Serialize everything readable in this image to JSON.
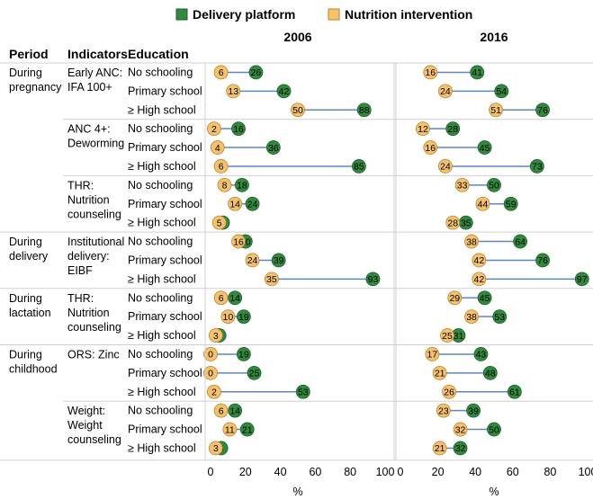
{
  "colors": {
    "delivery": "#2e8b3e",
    "delivery_stroke": "#1f5f2a",
    "nutrition": "#f5c26b",
    "nutrition_stroke": "#b8862e",
    "connector": "#5b87c5",
    "grid": "#d0d0d0"
  },
  "chart_data": {
    "type": "dumbbell",
    "legend": [
      "Delivery platform",
      "Nutrition intervention"
    ],
    "legend_position": "top",
    "column_headers": [
      "Period",
      "Indicators",
      "Education"
    ],
    "panels": [
      "2006",
      "2016"
    ],
    "xlabel": "%",
    "xlim": [
      0,
      100
    ],
    "xticks": [
      "0",
      "20",
      "40",
      "60",
      "80",
      "100"
    ],
    "groups": [
      {
        "period": "During pregnancy",
        "indicators": [
          {
            "name": "Early ANC: IFA 100+",
            "rows": [
              {
                "education": "No schooling",
                "n2006": 6,
                "d2006": 26,
                "n2016": 16,
                "d2016": 41
              },
              {
                "education": "Primary school",
                "n2006": 13,
                "d2006": 42,
                "n2016": 24,
                "d2016": 54
              },
              {
                "education": "≥ High school",
                "n2006": 50,
                "d2006": 88,
                "n2016": 51,
                "d2016": 76
              }
            ]
          },
          {
            "name": "ANC 4+: Deworming",
            "rows": [
              {
                "education": "No schooling",
                "n2006": 2,
                "d2006": 16,
                "n2016": 12,
                "d2016": 28
              },
              {
                "education": "Primary school",
                "n2006": 4,
                "d2006": 36,
                "n2016": 16,
                "d2016": 45
              },
              {
                "education": "≥ High school",
                "n2006": 6,
                "d2006": 85,
                "n2016": 24,
                "d2016": 73
              }
            ]
          },
          {
            "name": "THR: Nutrition counseling",
            "rows": [
              {
                "education": "No schooling",
                "n2006": 8,
                "d2006": 18,
                "n2016": 33,
                "d2016": 50
              },
              {
                "education": "Primary school",
                "n2006": 14,
                "d2006": 24,
                "n2016": 44,
                "d2016": 59
              },
              {
                "education": "≥ High school",
                "n2006": 5,
                "d2006": 7,
                "n2016": 28,
                "d2016": 35
              }
            ]
          }
        ]
      },
      {
        "period": "During delivery",
        "indicators": [
          {
            "name": "Institutional delivery: EIBF",
            "rows": [
              {
                "education": "No schooling",
                "n2006": 16,
                "d2006": 20,
                "n2016": 38,
                "d2016": 64
              },
              {
                "education": "Primary school",
                "n2006": 24,
                "d2006": 39,
                "n2016": 42,
                "d2016": 76
              },
              {
                "education": "≥ High school",
                "n2006": 35,
                "d2006": 93,
                "n2016": 42,
                "d2016": 97
              }
            ]
          }
        ]
      },
      {
        "period": "During lactation",
        "indicators": [
          {
            "name": "THR: Nutrition counseling",
            "rows": [
              {
                "education": "No schooling",
                "n2006": 6,
                "d2006": 14,
                "n2016": 29,
                "d2016": 45
              },
              {
                "education": "Primary school",
                "n2006": 10,
                "d2006": 19,
                "n2016": 38,
                "d2016": 53
              },
              {
                "education": "≥ High school",
                "n2006": 3,
                "d2006": 5,
                "n2016": 25,
                "d2016": 31
              }
            ]
          }
        ]
      },
      {
        "period": "During childhood",
        "indicators": [
          {
            "name": "ORS: Zinc",
            "rows": [
              {
                "education": "No schooling",
                "n2006": 0,
                "d2006": 19,
                "n2016": 17,
                "d2016": 43
              },
              {
                "education": "Primary school",
                "n2006": 0,
                "d2006": 25,
                "n2016": 21,
                "d2016": 48
              },
              {
                "education": "≥ High school",
                "n2006": 2,
                "d2006": 53,
                "n2016": 26,
                "d2016": 61
              }
            ]
          },
          {
            "name": "Weight: Weight counseling",
            "rows": [
              {
                "education": "No schooling",
                "n2006": 6,
                "d2006": 14,
                "n2016": 23,
                "d2016": 39
              },
              {
                "education": "Primary school",
                "n2006": 11,
                "d2006": 21,
                "n2016": 32,
                "d2016": 50
              },
              {
                "education": "≥ High school",
                "n2006": 3,
                "d2006": 6,
                "n2016": 21,
                "d2016": 32
              }
            ]
          }
        ]
      }
    ]
  }
}
